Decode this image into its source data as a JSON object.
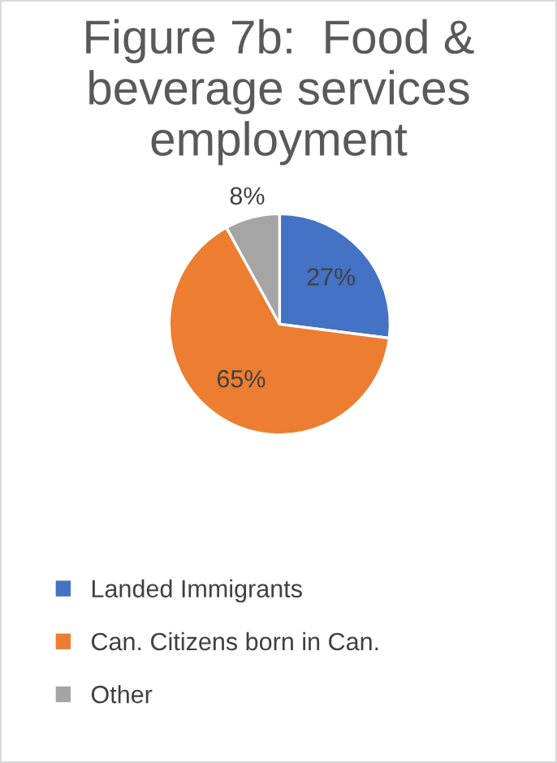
{
  "chart_data": {
    "type": "pie",
    "title": "Figure 7b:  Food & beverage services employment",
    "categories": [
      "Landed Immigrants",
      "Can. Citizens born in Can.",
      "Other"
    ],
    "values": [
      27,
      65,
      8
    ],
    "colors": [
      "#4472c4",
      "#ed7d31",
      "#a5a5a5"
    ],
    "value_labels": [
      "27%",
      "65%",
      "8%"
    ],
    "legend": "bottom"
  }
}
